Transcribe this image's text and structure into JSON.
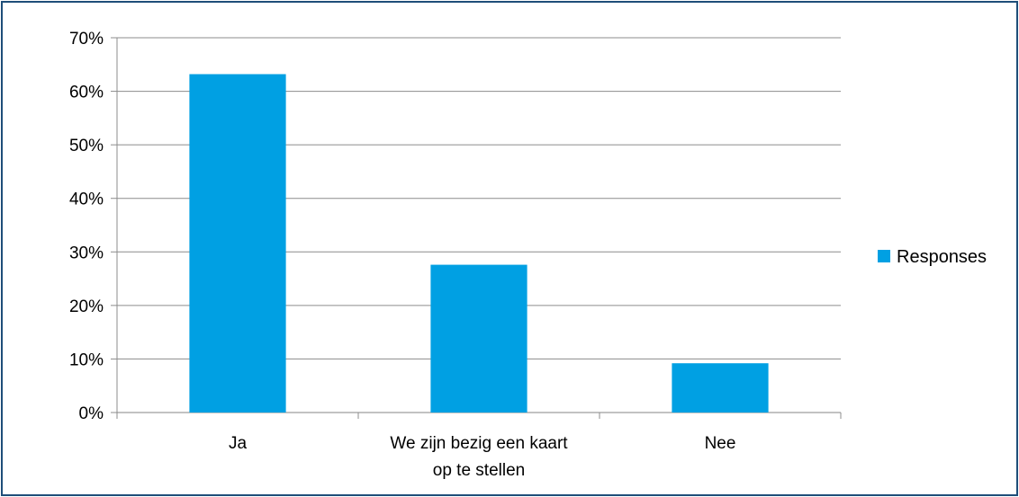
{
  "chart_data": {
    "type": "bar",
    "categories": [
      [
        "Ja"
      ],
      [
        "We zijn bezig een kaart",
        "op te stellen"
      ],
      [
        "Nee"
      ]
    ],
    "series": [
      {
        "name": "Responses",
        "values": [
          63.2,
          27.6,
          9.2
        ],
        "color": "#00a0e3"
      }
    ],
    "yticks": [
      "0%",
      "10%",
      "20%",
      "30%",
      "40%",
      "50%",
      "60%",
      "70%"
    ],
    "ylim": [
      0,
      70
    ],
    "grid": true,
    "legend": "right"
  }
}
